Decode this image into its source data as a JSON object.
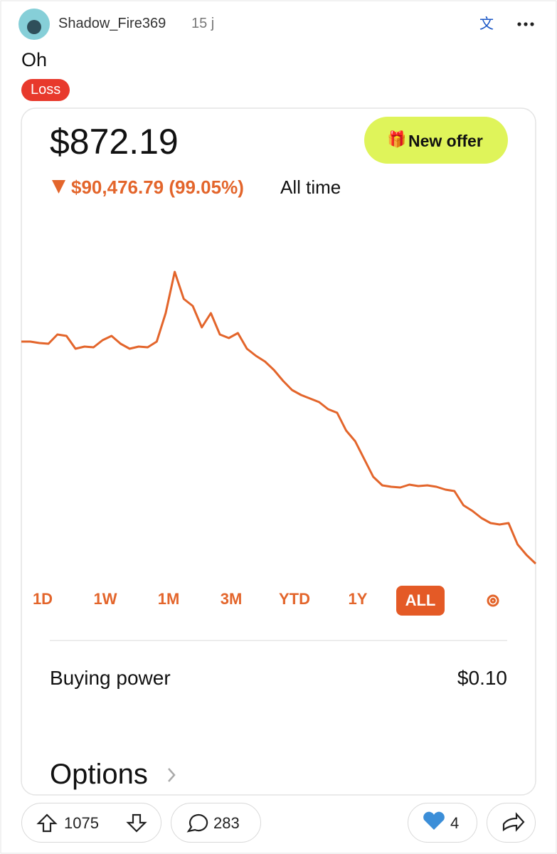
{
  "post": {
    "author": "Shadow_Fire369",
    "age": "15 j",
    "title": "Oh",
    "flair": "Loss"
  },
  "screenshot": {
    "balance": "$872.19",
    "offer": "New offer",
    "change": "$90,476.79 (99.05%)",
    "period": "All time",
    "chart": {
      "type": "line",
      "color": "#e3652b",
      "values": [
        91350,
        91350,
        90770,
        90480,
        94250,
        93670,
        88450,
        89320,
        89030,
        91930,
        93670,
        90480,
        88450,
        89320,
        89030,
        91350,
        102950,
        119770,
        108750,
        105850,
        97150,
        102950,
        94250,
        92800,
        94830,
        88450,
        85550,
        83230,
        79750,
        75400,
        71630,
        69600,
        68150,
        66700,
        63800,
        62350,
        55100,
        50750,
        43500,
        36250,
        32770,
        32190,
        31900,
        33060,
        32480,
        32770,
        32190,
        31030,
        30450,
        24650,
        22330,
        19430,
        17400,
        16820,
        17400,
        8700,
        4350,
        872.19
      ]
    },
    "ranges": [
      "1D",
      "1W",
      "1M",
      "3M",
      "YTD",
      "1Y",
      "ALL"
    ],
    "buying_power_label": "Buying power",
    "buying_power": "$0.10",
    "options": "Options"
  },
  "actions": {
    "upvotes": "1075",
    "comments": "283",
    "awards": "4"
  }
}
